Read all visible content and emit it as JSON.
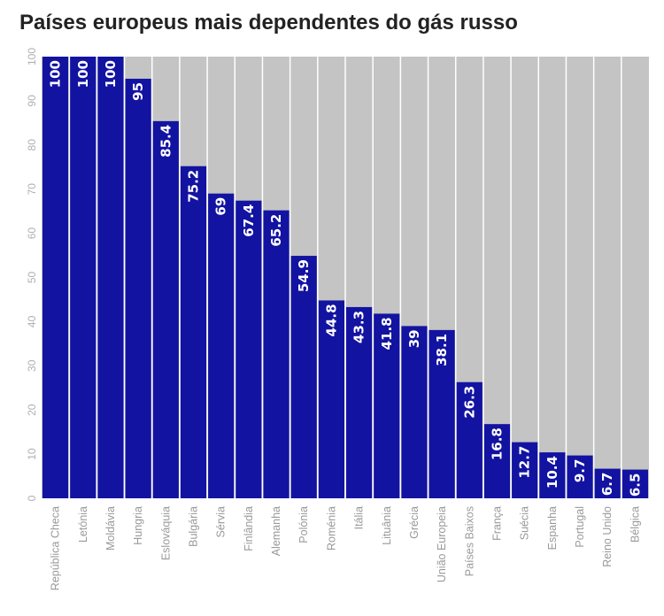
{
  "chart_data": {
    "type": "bar",
    "title": "Países europeus mais dependentes do gás russo",
    "xlabel": "",
    "ylabel": "",
    "ylim": [
      0,
      100
    ],
    "yticks": [
      0,
      10,
      20,
      30,
      40,
      50,
      60,
      70,
      80,
      90,
      100
    ],
    "grid": true,
    "categories": [
      "República Checa",
      "Letónia",
      "Moldávia",
      "Hungria",
      "Eslováquia",
      "Bulgária",
      "Sérvia",
      "Finlândia",
      "Alemanha",
      "Polónia",
      "Roménia",
      "Itália",
      "Lituânia",
      "Grécia",
      "União Europeia",
      "Países Baixos",
      "França",
      "Suécia",
      "Espanha",
      "Portugal",
      "Reino Unido",
      "Bélgica"
    ],
    "values": [
      100,
      100,
      100,
      95,
      85.4,
      75.2,
      69,
      67.4,
      65.2,
      54.9,
      44.8,
      43.3,
      41.8,
      39,
      38.1,
      26.3,
      16.8,
      12.7,
      10.4,
      9.7,
      6.7,
      6.5
    ],
    "labels": [
      "100",
      "100",
      "100",
      "95",
      "85.4",
      "75.2",
      "69",
      "67.4",
      "65.2",
      "54.9",
      "44.8",
      "43.3",
      "41.8",
      "39",
      "38.1",
      "26.3",
      "16.8",
      "12.7",
      "10.4",
      "9.7",
      "6.7",
      "6.5"
    ],
    "bar_color": "#1313a1",
    "plot_background": "#c4c4c4",
    "gridline_color": "#ffffff"
  }
}
